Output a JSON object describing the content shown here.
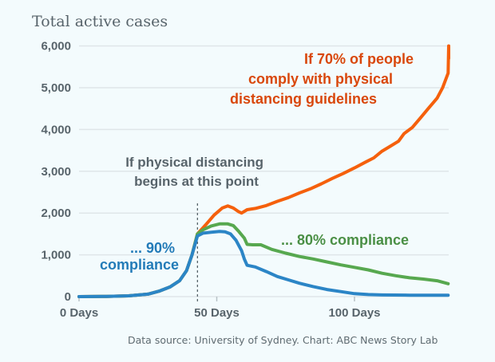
{
  "chart_data": {
    "type": "line",
    "title": "Total active cases",
    "xlabel": "",
    "ylabel": "Total active cases",
    "xlim": [
      0,
      134
    ],
    "ylim": [
      0,
      6000
    ],
    "grid": true,
    "x_ticks": [
      {
        "value": 0,
        "label": "0 Days"
      },
      {
        "value": 50,
        "label": "50 Days"
      },
      {
        "value": 100,
        "label": "100 Days"
      }
    ],
    "y_ticks": [
      {
        "value": 0,
        "label": "0"
      },
      {
        "value": 1000,
        "label": "1,000"
      },
      {
        "value": 2000,
        "label": "2,000"
      },
      {
        "value": 3000,
        "label": "3,000"
      },
      {
        "value": 4000,
        "label": "4,000"
      },
      {
        "value": 5000,
        "label": "5,000"
      },
      {
        "value": 6000,
        "label": "6,000"
      }
    ],
    "intervention_day": 43,
    "series": [
      {
        "name": "70% compliance",
        "color": "#f5600c",
        "points": [
          [
            0,
            0
          ],
          [
            10,
            5
          ],
          [
            18,
            20
          ],
          [
            25,
            60
          ],
          [
            29,
            130
          ],
          [
            33,
            230
          ],
          [
            36.5,
            380
          ],
          [
            39,
            620
          ],
          [
            41,
            1000
          ],
          [
            43,
            1500
          ],
          [
            46,
            1720
          ],
          [
            49,
            1950
          ],
          [
            52,
            2120
          ],
          [
            54,
            2170
          ],
          [
            56,
            2120
          ],
          [
            58,
            2030
          ],
          [
            59,
            2000
          ],
          [
            61,
            2080
          ],
          [
            64,
            2110
          ],
          [
            68,
            2180
          ],
          [
            72,
            2280
          ],
          [
            76,
            2370
          ],
          [
            80,
            2480
          ],
          [
            84,
            2580
          ],
          [
            88,
            2700
          ],
          [
            92,
            2830
          ],
          [
            96,
            2950
          ],
          [
            100,
            3080
          ],
          [
            104,
            3220
          ],
          [
            107,
            3320
          ],
          [
            110,
            3480
          ],
          [
            113,
            3600
          ],
          [
            116,
            3720
          ],
          [
            118,
            3900
          ],
          [
            121,
            4050
          ],
          [
            124,
            4280
          ],
          [
            127,
            4520
          ],
          [
            130,
            4750
          ],
          [
            132,
            5000
          ],
          [
            134,
            5350
          ],
          [
            136,
            5700
          ],
          [
            134.5,
            6000
          ]
        ]
      },
      {
        "name": "80% compliance",
        "color": "#57a84f",
        "points": [
          [
            0,
            0
          ],
          [
            10,
            5
          ],
          [
            18,
            20
          ],
          [
            25,
            60
          ],
          [
            29,
            130
          ],
          [
            33,
            230
          ],
          [
            36.5,
            380
          ],
          [
            39,
            620
          ],
          [
            41,
            1000
          ],
          [
            43,
            1500
          ],
          [
            45,
            1600
          ],
          [
            48,
            1690
          ],
          [
            51,
            1740
          ],
          [
            54,
            1740
          ],
          [
            56,
            1700
          ],
          [
            58,
            1560
          ],
          [
            60,
            1400
          ],
          [
            61,
            1250
          ],
          [
            63,
            1240
          ],
          [
            66,
            1240
          ],
          [
            70,
            1130
          ],
          [
            75,
            1040
          ],
          [
            80,
            960
          ],
          [
            85,
            900
          ],
          [
            90,
            830
          ],
          [
            95,
            760
          ],
          [
            100,
            700
          ],
          [
            105,
            640
          ],
          [
            110,
            560
          ],
          [
            115,
            500
          ],
          [
            120,
            450
          ],
          [
            125,
            420
          ],
          [
            130,
            380
          ],
          [
            134,
            310
          ]
        ]
      },
      {
        "name": "90% compliance",
        "color": "#2b85c6",
        "points": [
          [
            0,
            0
          ],
          [
            10,
            5
          ],
          [
            18,
            20
          ],
          [
            25,
            60
          ],
          [
            29,
            130
          ],
          [
            33,
            230
          ],
          [
            36.5,
            380
          ],
          [
            39,
            620
          ],
          [
            41,
            1000
          ],
          [
            43,
            1450
          ],
          [
            45,
            1520
          ],
          [
            48,
            1540
          ],
          [
            51,
            1560
          ],
          [
            53,
            1550
          ],
          [
            55,
            1500
          ],
          [
            57,
            1350
          ],
          [
            59,
            1100
          ],
          [
            60,
            900
          ],
          [
            61,
            750
          ],
          [
            64,
            710
          ],
          [
            68,
            600
          ],
          [
            72,
            480
          ],
          [
            76,
            400
          ],
          [
            80,
            320
          ],
          [
            85,
            240
          ],
          [
            90,
            170
          ],
          [
            95,
            120
          ],
          [
            100,
            70
          ],
          [
            105,
            50
          ],
          [
            110,
            40
          ],
          [
            120,
            35
          ],
          [
            134,
            35
          ]
        ]
      }
    ],
    "annotations": [
      {
        "lines": [
          "If 70% of people",
          "comply with physical",
          "distancing guidelines"
        ],
        "color": "#d9470b"
      },
      {
        "lines": [
          "If physical distancing",
          "begins at this point"
        ],
        "color": "#58646b"
      },
      {
        "lines": [
          "... 80% compliance"
        ],
        "color": "#4a8f45"
      },
      {
        "lines": [
          "... 90%",
          "compliance"
        ],
        "color": "#237bb8"
      }
    ],
    "source": "Data source: University of Sydney. Chart: ABC News Story Lab"
  }
}
